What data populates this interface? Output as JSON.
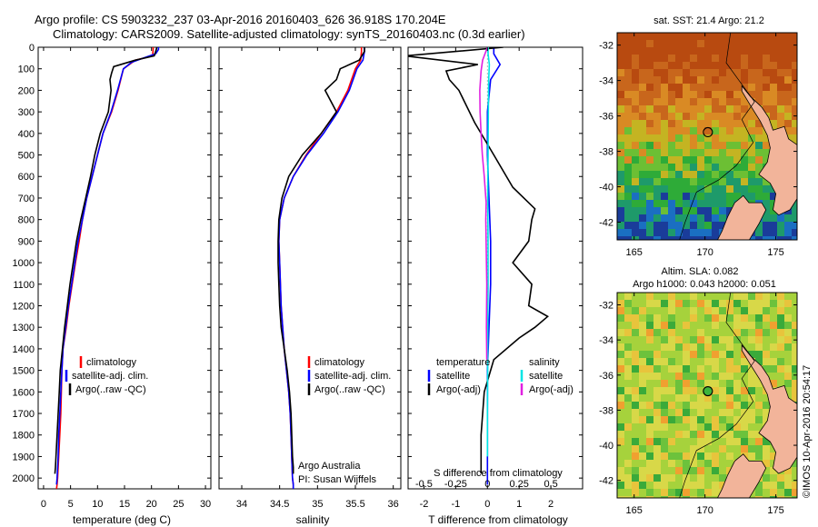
{
  "header": {
    "line1": "Argo profile: CS 5903232_237 03-Apr-2016 20160403_626 36.918S 170.204E",
    "line2": "Climatology: CARS2009. Satellite-adjusted climatology: synTS_20160403.nc (0.3d earlier)"
  },
  "credits": {
    "program": "Argo Australia",
    "pi": "PI: Susan Wijffels",
    "copyright": "©IMOS 10-Apr-2016 20:54:17"
  },
  "colors": {
    "climatology": "#ff0000",
    "satellite": "#0000ff",
    "argo": "#000000",
    "satellite_salinity": "#00e5e5",
    "argo_salinity": "#e020e0"
  },
  "chart_data": [
    {
      "id": "temperature",
      "type": "line",
      "xlabel": "temperature (deg C)",
      "ylabel": "",
      "xlim": [
        -1,
        31
      ],
      "xticks": [
        0,
        5,
        10,
        15,
        20,
        25,
        30
      ],
      "ylim": [
        2050,
        0
      ],
      "yticks": [
        0,
        100,
        200,
        300,
        400,
        500,
        600,
        700,
        800,
        900,
        1000,
        1100,
        1200,
        1300,
        1400,
        1500,
        1600,
        1700,
        1800,
        1900,
        2000
      ],
      "legend": [
        "climatology",
        "satellite-adj. clim.",
        "Argo(..raw -QC)"
      ],
      "series": [
        {
          "name": "climatology",
          "color": "#ff0000",
          "x": [
            20.3,
            20.3,
            20.2,
            17.0,
            14.8,
            13.8,
            12.6,
            11.0,
            10.0,
            9.0,
            8.0,
            7.2,
            6.6,
            5.9,
            5.3,
            4.7,
            4.2,
            3.6,
            3.4,
            3.3,
            3.2,
            3.0,
            2.8,
            2.7,
            2.6,
            2.5,
            2.4
          ],
          "y": [
            0,
            10,
            40,
            60,
            100,
            200,
            300,
            400,
            500,
            600,
            700,
            800,
            900,
            1000,
            1100,
            1200,
            1300,
            1400,
            1500,
            1600,
            1700,
            1800,
            1900,
            1950,
            2000,
            2030,
            2050
          ]
        },
        {
          "name": "satellite-adj. clim.",
          "color": "#0000ff",
          "x": [
            21.3,
            21.3,
            20.8,
            18.5,
            16.3,
            14.8,
            13.7,
            12.5,
            11.0,
            10.0,
            9.0,
            8.0,
            7.2,
            6.4,
            5.8,
            5.2,
            4.6,
            4.1,
            3.6,
            3.4,
            3.2,
            3.0,
            2.8,
            2.7,
            2.6,
            2.5,
            2.4
          ],
          "y": [
            0,
            10,
            30,
            50,
            70,
            100,
            200,
            300,
            400,
            500,
            600,
            700,
            800,
            900,
            1000,
            1100,
            1200,
            1300,
            1400,
            1500,
            1600,
            1700,
            1800,
            1900,
            1950,
            2000,
            2030
          ]
        },
        {
          "name": "Argo(..raw -QC)",
          "color": "#000000",
          "x": [
            21.0,
            20.9,
            20.5,
            17.0,
            13.0,
            12.6,
            12.3,
            12.5,
            12.0,
            10.5,
            9.5,
            8.7,
            7.8,
            6.9,
            6.1,
            5.5,
            4.9,
            4.4,
            3.9,
            3.5,
            3.1,
            2.9,
            2.7,
            2.5,
            2.3,
            2.2,
            2.1
          ],
          "y": [
            0,
            10,
            40,
            60,
            90,
            120,
            150,
            200,
            300,
            400,
            500,
            600,
            700,
            800,
            900,
            1000,
            1100,
            1200,
            1300,
            1400,
            1500,
            1600,
            1700,
            1800,
            1900,
            1950,
            1980
          ]
        }
      ]
    },
    {
      "id": "salinity",
      "type": "line",
      "xlabel": "salinity",
      "ylabel": "",
      "xlim": [
        33.7,
        36.1
      ],
      "xticks": [
        34,
        34.5,
        35,
        35.5,
        36
      ],
      "xticklabels": [
        "34",
        "34.5",
        "35",
        "35.5",
        "36"
      ],
      "ylim": [
        2050,
        0
      ],
      "legend": [
        "climatology",
        "satellite-adj. clim.",
        "Argo(..raw -QC)"
      ],
      "series": [
        {
          "name": "climatology",
          "color": "#ff0000",
          "x": [
            35.58,
            35.58,
            35.57,
            35.5,
            35.4,
            35.25,
            35.05,
            34.85,
            34.68,
            34.56,
            34.5,
            34.49,
            34.5,
            34.51,
            34.52,
            34.54,
            34.56,
            34.59,
            34.62,
            34.64,
            34.65,
            34.66,
            34.67,
            34.68,
            34.68
          ],
          "y": [
            0,
            20,
            60,
            100,
            200,
            300,
            400,
            500,
            600,
            700,
            800,
            900,
            1000,
            1100,
            1200,
            1300,
            1400,
            1500,
            1600,
            1700,
            1800,
            1900,
            2000,
            2030,
            2050
          ]
        },
        {
          "name": "satellite-adj. clim.",
          "color": "#0000ff",
          "x": [
            35.62,
            35.62,
            35.6,
            35.52,
            35.42,
            35.27,
            35.08,
            34.86,
            34.68,
            34.56,
            34.5,
            34.49,
            34.5,
            34.51,
            34.52,
            34.54,
            34.56,
            34.59,
            34.62,
            34.64,
            34.65,
            34.66,
            34.67,
            34.68,
            34.68
          ],
          "y": [
            0,
            20,
            60,
            100,
            200,
            300,
            400,
            500,
            600,
            700,
            800,
            900,
            1000,
            1100,
            1200,
            1300,
            1400,
            1500,
            1600,
            1700,
            1800,
            1900,
            2000,
            2030,
            2050
          ]
        },
        {
          "name": "Argo(..raw -QC)",
          "color": "#000000",
          "x": [
            35.62,
            35.62,
            35.55,
            35.3,
            35.25,
            35.1,
            35.25,
            35.05,
            34.8,
            34.62,
            34.53,
            34.49,
            34.48,
            34.48,
            34.49,
            34.5,
            34.52,
            34.56,
            34.6,
            34.63,
            34.65,
            34.66,
            34.67,
            34.68,
            34.68
          ],
          "y": [
            0,
            20,
            60,
            100,
            150,
            200,
            300,
            400,
            500,
            600,
            700,
            800,
            900,
            1000,
            1100,
            1200,
            1300,
            1400,
            1500,
            1600,
            1700,
            1800,
            1900,
            1950,
            1980
          ]
        }
      ]
    },
    {
      "id": "difference",
      "type": "line",
      "xlabel": "T difference from climatology",
      "xlabel_top": "S difference from climatology",
      "xlim": [
        -2.5,
        3.0
      ],
      "xticks": [
        -2,
        -1,
        0,
        1,
        2
      ],
      "xticks_s": [
        -0.5,
        -0.25,
        0,
        0.25,
        0.5
      ],
      "xticklabels_s": [
        "-0.5",
        "-0.25",
        "0",
        "0.25",
        "0.5"
      ],
      "ylim": [
        2050,
        0
      ],
      "legend_t": [
        "temperature",
        "satellite",
        "Argo(-adj)"
      ],
      "legend_s": [
        "salinity",
        "satellite",
        "Argo(-adj)"
      ],
      "series": [
        {
          "name": "temperature satellite",
          "color": "#0000ff",
          "x": [
            0.2,
            0.2,
            0.4,
            0.1,
            0.0,
            0.0,
            0.05,
            0.1,
            0.1,
            0.05,
            0.0,
            0.0,
            0.0,
            0.0
          ],
          "y": [
            0,
            30,
            80,
            150,
            300,
            500,
            700,
            900,
            1100,
            1300,
            1500,
            1700,
            1900,
            2030
          ]
        },
        {
          "name": "temperature Argo(-adj)",
          "color": "#000000",
          "x": [
            0.5,
            -2.6,
            -0.3,
            -1.3,
            -1.2,
            -0.9,
            -0.4,
            0.2,
            0.8,
            1.5,
            1.4,
            1.3,
            0.8,
            1.4,
            1.3,
            1.9,
            1.5,
            1.0,
            0.2,
            -0.1,
            -0.2,
            -0.2,
            -0.2
          ],
          "y": [
            0,
            40,
            80,
            110,
            150,
            200,
            350,
            500,
            650,
            750,
            800,
            900,
            1000,
            1100,
            1200,
            1250,
            1300,
            1350,
            1450,
            1600,
            1800,
            1950,
            1980
          ]
        },
        {
          "name": "salinity satellite",
          "color": "#00e5e5",
          "x": [
            0.02,
            0.02,
            0.06,
            0.04,
            0.03,
            0.02,
            0.01,
            0.02,
            0.02,
            0.01,
            0.01,
            0.0,
            0.0
          ],
          "y": [
            0,
            30,
            80,
            150,
            300,
            500,
            700,
            900,
            1100,
            1300,
            1500,
            1700,
            1900
          ]
        },
        {
          "name": "salinity Argo(-adj)",
          "color": "#e020e0",
          "x": [
            0.0,
            -0.15,
            -0.2,
            -0.24,
            -0.23,
            -0.2,
            -0.16,
            -0.1,
            -0.05,
            -0.04,
            -0.05,
            -0.03,
            -0.02,
            -0.03,
            -0.02
          ],
          "y": [
            0,
            60,
            110,
            200,
            300,
            400,
            500,
            600,
            700,
            720,
            800,
            1000,
            1100,
            1300,
            1450
          ]
        }
      ]
    },
    {
      "id": "sst-map",
      "type": "heatmap",
      "title": "sat. SST: 21.4  Argo: 21.2",
      "title_line2": "",
      "xlim": [
        163.8,
        176.5
      ],
      "ylim": [
        -43,
        -31.3
      ],
      "xticks": [
        165,
        170,
        175
      ],
      "yticks": [
        -32,
        -34,
        -36,
        -38,
        -40,
        -42
      ],
      "marker": {
        "lon": 170.204,
        "lat": -36.918
      }
    },
    {
      "id": "sla-map",
      "type": "heatmap",
      "title": "Altim. SLA: 0.082",
      "title_line2": "Argo h1000: 0.043 h2000: 0.051",
      "xlim": [
        163.8,
        176.5
      ],
      "ylim": [
        -43,
        -31.3
      ],
      "xticks": [
        165,
        170,
        175
      ],
      "yticks": [
        -32,
        -34,
        -36,
        -38,
        -40,
        -42
      ],
      "marker": {
        "lon": 170.204,
        "lat": -36.918
      }
    }
  ]
}
